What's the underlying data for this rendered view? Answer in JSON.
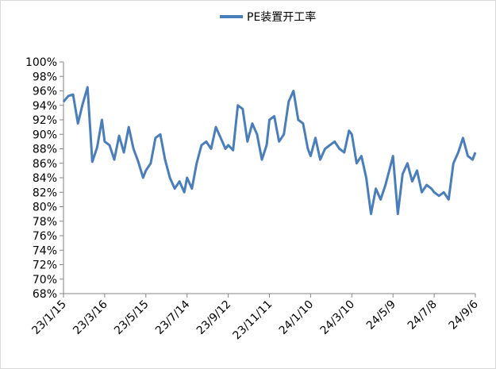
{
  "chart_data": {
    "type": "line",
    "title": "",
    "xlabel": "",
    "ylabel": "",
    "legend_position": "top",
    "grid": false,
    "ylim": [
      68,
      100
    ],
    "y_unit": "%",
    "yticks": [
      "100%",
      "98%",
      "96%",
      "94%",
      "92%",
      "90%",
      "88%",
      "86%",
      "84%",
      "82%",
      "80%",
      "78%",
      "76%",
      "74%",
      "72%",
      "70%",
      "68%"
    ],
    "xticks": [
      "23/1/15",
      "23/3/16",
      "23/5/15",
      "23/7/14",
      "23/9/12",
      "23/11/11",
      "24/1/10",
      "24/3/10",
      "24/5/9",
      "24/7/8",
      "24/9/6"
    ],
    "series": [
      {
        "name": "PE装置开工率",
        "color": "#4a7ebb",
        "x": [
          "23/1/15",
          "23/1/22",
          "23/1/29",
          "23/2/5",
          "23/2/12",
          "23/2/19",
          "23/2/26",
          "23/3/5",
          "23/3/12",
          "23/3/16",
          "23/3/23",
          "23/3/30",
          "23/4/6",
          "23/4/13",
          "23/4/20",
          "23/4/27",
          "23/5/4",
          "23/5/11",
          "23/5/15",
          "23/5/22",
          "23/5/29",
          "23/6/5",
          "23/6/12",
          "23/6/19",
          "23/6/26",
          "23/7/3",
          "23/7/10",
          "23/7/14",
          "23/7/21",
          "23/7/28",
          "23/8/4",
          "23/8/11",
          "23/8/18",
          "23/8/25",
          "23/9/1",
          "23/9/8",
          "23/9/12",
          "23/9/19",
          "23/9/26",
          "23/10/3",
          "23/10/10",
          "23/10/17",
          "23/10/24",
          "23/10/31",
          "23/11/7",
          "23/11/11",
          "23/11/18",
          "23/11/25",
          "23/12/2",
          "23/12/9",
          "23/12/16",
          "23/12/23",
          "23/12/30",
          "24/1/6",
          "24/1/10",
          "24/1/17",
          "24/1/24",
          "24/1/31",
          "24/2/7",
          "24/2/14",
          "24/2/21",
          "24/2/28",
          "24/3/6",
          "24/3/10",
          "24/3/17",
          "24/3/24",
          "24/3/31",
          "24/4/7",
          "24/4/14",
          "24/4/21",
          "24/4/28",
          "24/5/5",
          "24/5/9",
          "24/5/16",
          "24/5/23",
          "24/5/30",
          "24/6/6",
          "24/6/13",
          "24/6/20",
          "24/6/27",
          "24/7/4",
          "24/7/8",
          "24/7/15",
          "24/7/22",
          "24/7/29",
          "24/8/5",
          "24/8/12",
          "24/8/19",
          "24/8/26",
          "24/9/2",
          "24/9/6"
        ],
        "values": [
          94.5,
          95.3,
          95.5,
          91.5,
          94.2,
          96.5,
          86.2,
          88.2,
          92.0,
          89.0,
          88.5,
          86.5,
          89.8,
          87.5,
          91.0,
          88.0,
          86.2,
          84.0,
          85.0,
          86.0,
          89.5,
          90.0,
          86.5,
          84.0,
          82.5,
          83.5,
          82.0,
          84.0,
          82.5,
          86.0,
          88.5,
          89.0,
          88.0,
          91.0,
          89.5,
          88.0,
          88.5,
          87.8,
          94.0,
          93.5,
          89.0,
          91.5,
          90.0,
          86.5,
          88.5,
          92.0,
          92.5,
          89.0,
          90.0,
          94.5,
          96.0,
          92.0,
          91.5,
          88.0,
          87.0,
          89.5,
          86.5,
          88.0,
          88.5,
          89.0,
          88.0,
          87.5,
          90.5,
          90.0,
          86.0,
          87.0,
          84.0,
          79.0,
          82.5,
          81.0,
          83.0,
          85.5,
          87.0,
          79.0,
          84.5,
          86.0,
          83.5,
          85.0,
          82.0,
          83.0,
          82.5,
          82.0,
          81.5,
          82.0,
          81.0,
          86.0,
          87.5,
          89.5,
          87.0,
          86.5,
          87.5
        ]
      }
    ]
  }
}
